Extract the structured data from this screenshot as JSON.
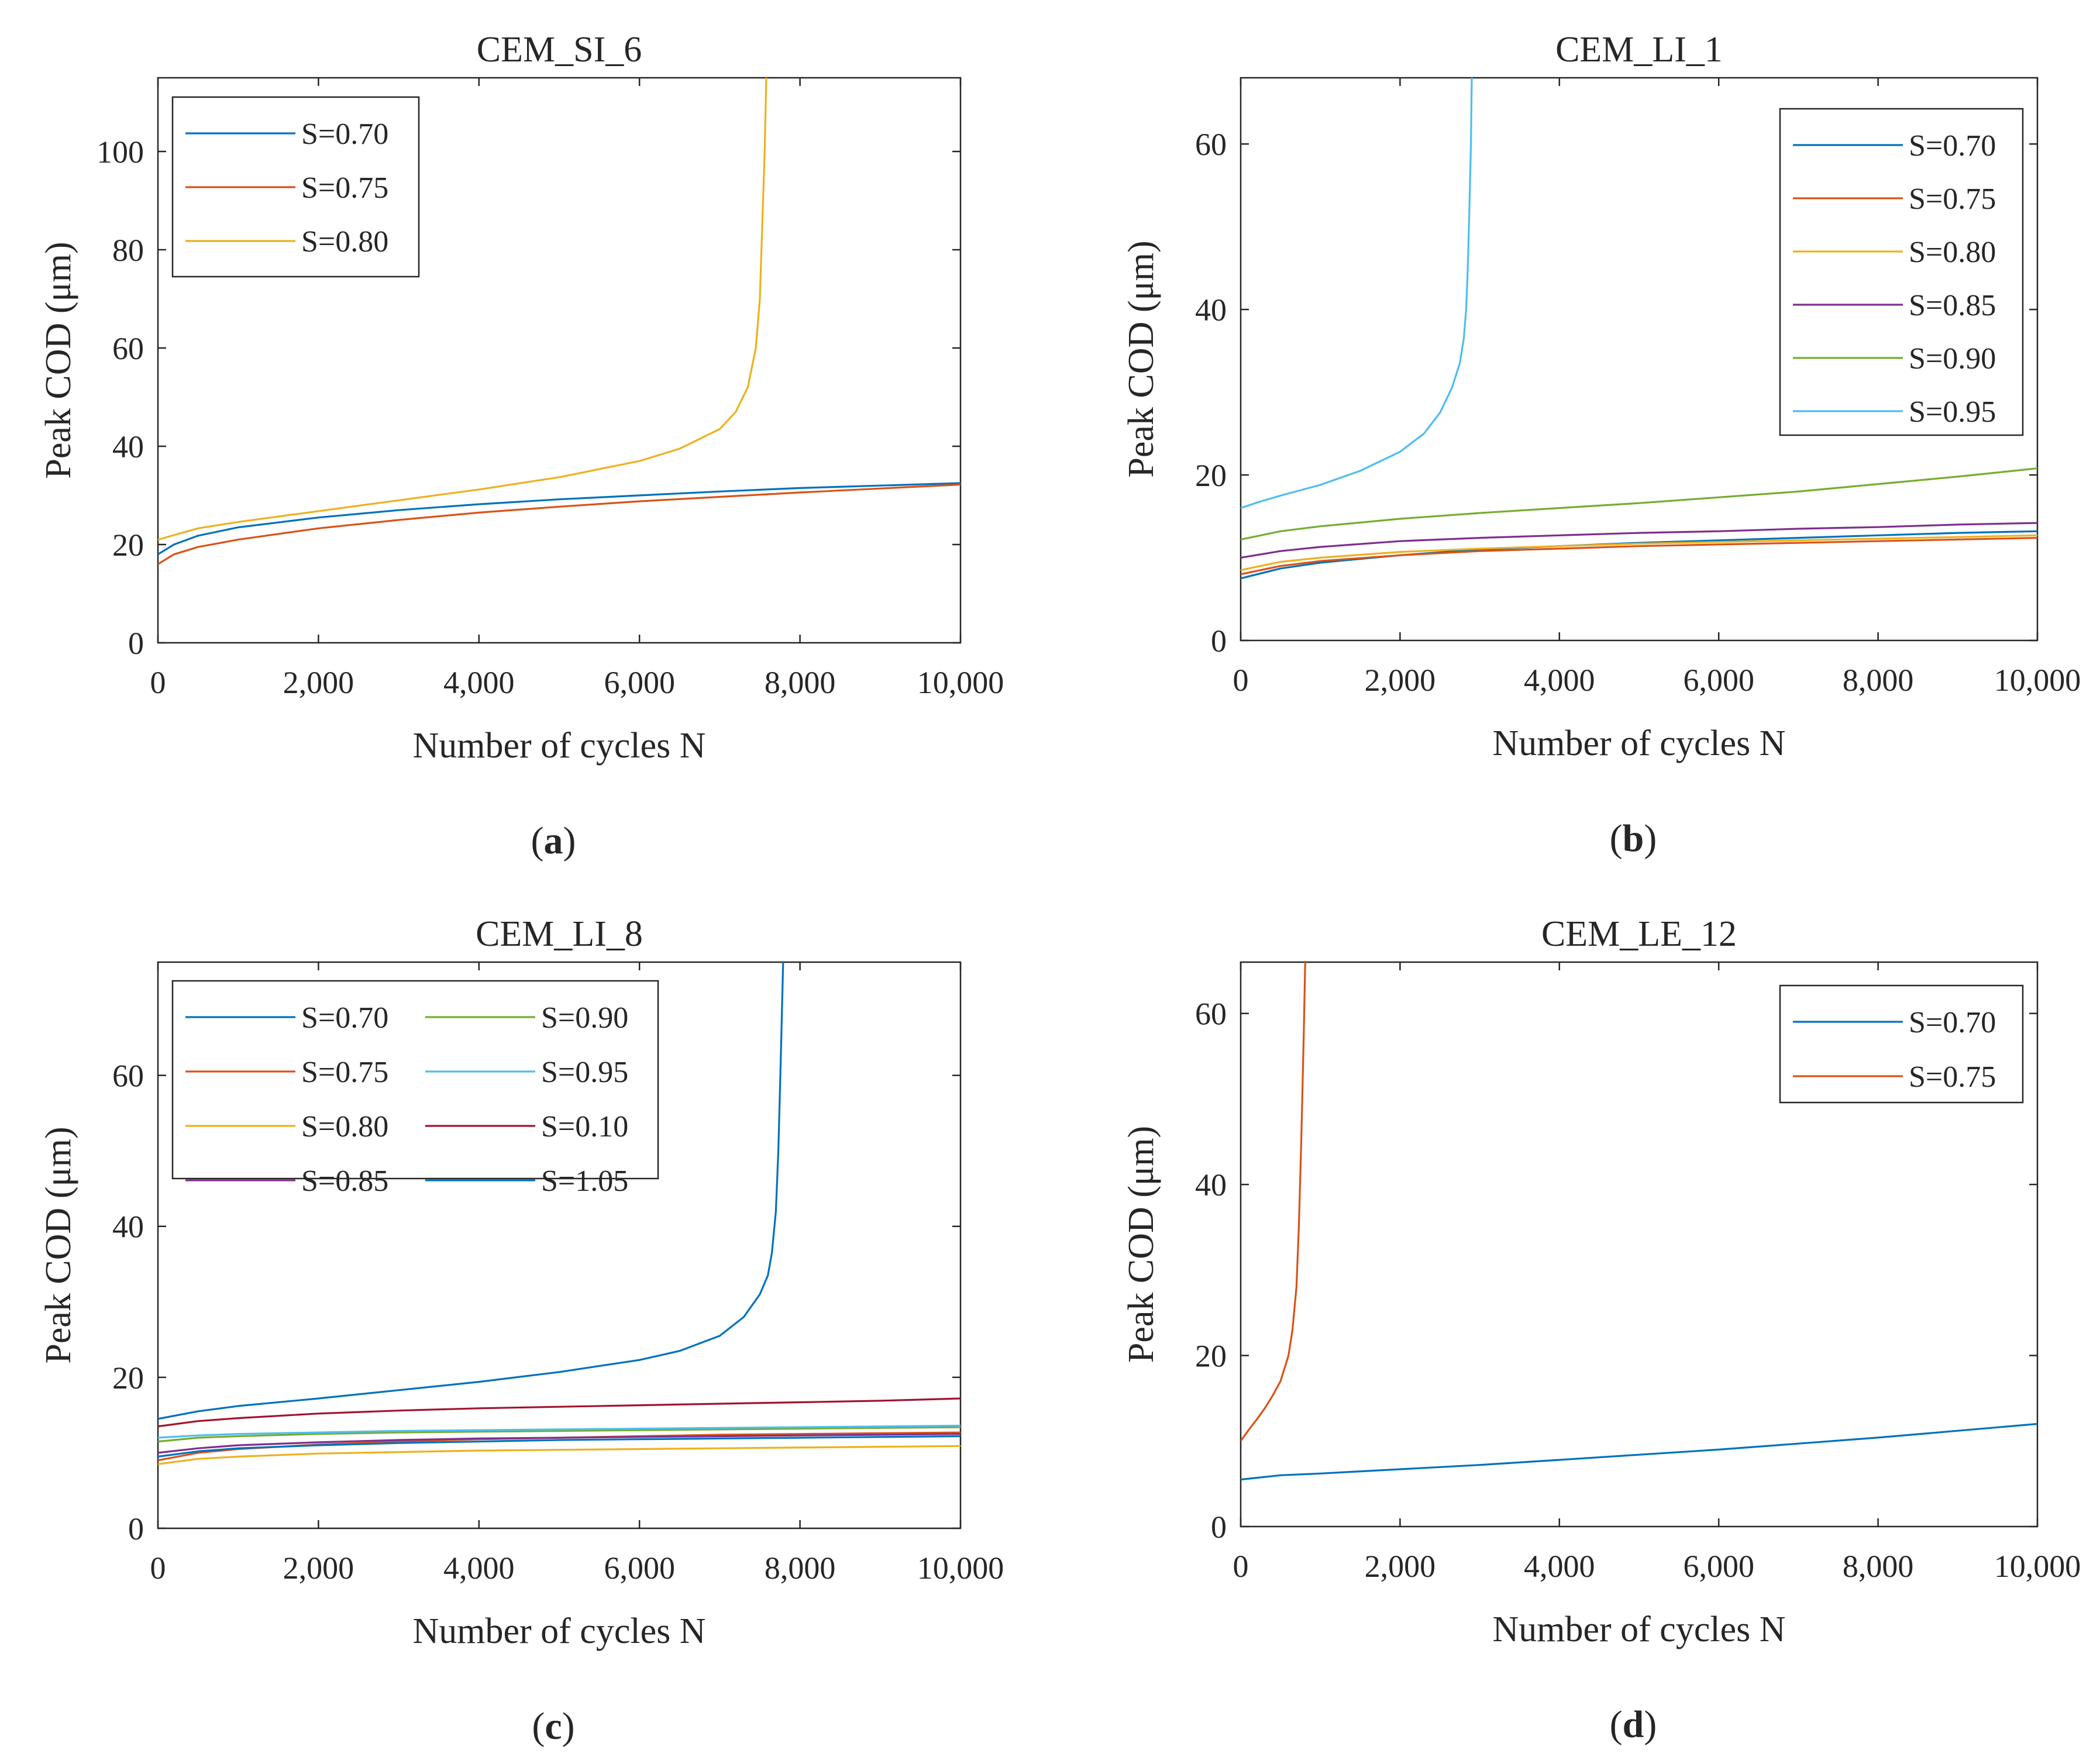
{
  "figure": {
    "colors": {
      "blue": "#0072BD",
      "orange": "#D95319",
      "yellow": "#EDB120",
      "purple": "#7E2F8E",
      "green": "#77AC30",
      "cyan": "#4DBEEE",
      "crimson": "#A2142F"
    }
  },
  "chart_data": [
    {
      "type": "line",
      "panel_label": "a",
      "title": "CEM_SI_6",
      "xlabel": "Number of cycles N",
      "ylabel": "Peak COD (μm)",
      "xlim": [
        0,
        10000
      ],
      "ylim": [
        0,
        115
      ],
      "xticks": [
        0,
        2000,
        4000,
        6000,
        8000,
        10000
      ],
      "xtick_labels": [
        "0",
        "2,000",
        "4,000",
        "6,000",
        "8,000",
        "10,000"
      ],
      "yticks": [
        0,
        20,
        40,
        60,
        80,
        100
      ],
      "ytick_labels": [
        "0",
        "20",
        "40",
        "60",
        "80",
        "100"
      ],
      "legend_position": "top-left",
      "legend_columns": 1,
      "series": [
        {
          "name": "S=0.70",
          "color": "#0072BD",
          "x": [
            0,
            200,
            500,
            1000,
            2000,
            3000,
            4000,
            5000,
            6000,
            7000,
            8000,
            9000,
            10000
          ],
          "y": [
            18,
            20,
            21.8,
            23.5,
            25.5,
            27,
            28.2,
            29.2,
            30,
            30.8,
            31.5,
            32,
            32.5
          ]
        },
        {
          "name": "S=0.75",
          "color": "#D95319",
          "x": [
            0,
            200,
            500,
            1000,
            2000,
            3000,
            4000,
            5000,
            6000,
            7000,
            8000,
            9000,
            10000
          ],
          "y": [
            16,
            18,
            19.5,
            21,
            23.3,
            25,
            26.5,
            27.7,
            28.8,
            29.7,
            30.6,
            31.4,
            32.2
          ]
        },
        {
          "name": "S=0.80",
          "color": "#EDB120",
          "x": [
            0,
            500,
            1000,
            2000,
            3000,
            4000,
            5000,
            6000,
            6500,
            7000,
            7200,
            7350,
            7450,
            7500,
            7530,
            7560,
            7580
          ],
          "y": [
            21,
            23.3,
            24.6,
            26.8,
            29,
            31.2,
            33.7,
            37,
            39.5,
            43.5,
            47,
            52,
            60,
            70,
            85,
            100,
            115
          ]
        }
      ]
    },
    {
      "type": "line",
      "panel_label": "b",
      "title": "CEM_LI_1",
      "xlabel": "Number of cycles N",
      "ylabel": "Peak COD (μm)",
      "xlim": [
        0,
        10000
      ],
      "ylim": [
        0,
        68
      ],
      "xticks": [
        0,
        2000,
        4000,
        6000,
        8000,
        10000
      ],
      "xtick_labels": [
        "0",
        "2,000",
        "4,000",
        "6,000",
        "8,000",
        "10,000"
      ],
      "yticks": [
        0,
        20,
        40,
        60
      ],
      "ytick_labels": [
        "0",
        "20",
        "40",
        "60"
      ],
      "legend_position": "top-right",
      "legend_columns": 1,
      "series": [
        {
          "name": "S=0.70",
          "color": "#0072BD",
          "x": [
            0,
            500,
            1000,
            2000,
            3000,
            4000,
            5000,
            6000,
            7000,
            8000,
            9000,
            10000
          ],
          "y": [
            7.5,
            8.7,
            9.4,
            10.3,
            11,
            11.4,
            11.8,
            12.1,
            12.4,
            12.7,
            13,
            13.2
          ]
        },
        {
          "name": "S=0.75",
          "color": "#D95319",
          "x": [
            0,
            500,
            1000,
            2000,
            3000,
            4000,
            5000,
            6000,
            7000,
            8000,
            9000,
            10000
          ],
          "y": [
            8,
            9,
            9.6,
            10.3,
            10.8,
            11.1,
            11.4,
            11.6,
            11.8,
            12,
            12.2,
            12.4
          ]
        },
        {
          "name": "S=0.80",
          "color": "#EDB120",
          "x": [
            0,
            500,
            1000,
            2000,
            3000,
            4000,
            5000,
            6000,
            7000,
            8000,
            9000,
            10000
          ],
          "y": [
            8.5,
            9.5,
            10,
            10.7,
            11.1,
            11.4,
            11.7,
            11.9,
            12.1,
            12.3,
            12.5,
            12.7
          ]
        },
        {
          "name": "S=0.85",
          "color": "#7E2F8E",
          "x": [
            0,
            500,
            1000,
            2000,
            3000,
            4000,
            5000,
            6000,
            7000,
            8000,
            9000,
            10000
          ],
          "y": [
            10,
            10.8,
            11.3,
            12,
            12.4,
            12.7,
            13,
            13.2,
            13.5,
            13.7,
            14,
            14.2
          ]
        },
        {
          "name": "S=0.90",
          "color": "#77AC30",
          "x": [
            0,
            500,
            1000,
            2000,
            3000,
            4000,
            5000,
            6000,
            7000,
            8000,
            9000,
            10000
          ],
          "y": [
            12.2,
            13.2,
            13.8,
            14.7,
            15.4,
            16,
            16.6,
            17.3,
            18,
            18.9,
            19.8,
            20.8
          ]
        },
        {
          "name": "S=0.95",
          "color": "#4DBEEE",
          "x": [
            0,
            250,
            500,
            1000,
            1500,
            2000,
            2300,
            2500,
            2650,
            2750,
            2800,
            2830,
            2850,
            2870,
            2890,
            2900
          ],
          "y": [
            16,
            16.8,
            17.5,
            18.8,
            20.5,
            22.8,
            25,
            27.5,
            30.5,
            33.5,
            36.5,
            40,
            45,
            52,
            60,
            68
          ]
        }
      ]
    },
    {
      "type": "line",
      "panel_label": "c",
      "title": "CEM_LI_8",
      "xlabel": "Number of cycles N",
      "ylabel": "Peak COD (μm)",
      "xlim": [
        0,
        10000
      ],
      "ylim": [
        0,
        75
      ],
      "xticks": [
        0,
        2000,
        4000,
        6000,
        8000,
        10000
      ],
      "xtick_labels": [
        "0",
        "2,000",
        "4,000",
        "6,000",
        "8,000",
        "10,000"
      ],
      "yticks": [
        0,
        20,
        40,
        60
      ],
      "ytick_labels": [
        "0",
        "20",
        "40",
        "60"
      ],
      "legend_position": "top-left",
      "legend_columns": 2,
      "series": [
        {
          "name": "S=0.70",
          "color": "#0072BD",
          "x": [
            0,
            500,
            1000,
            2000,
            3000,
            4000,
            5000,
            6000,
            6500,
            7000,
            7300,
            7500,
            7600,
            7650,
            7700,
            7730,
            7760,
            7790
          ],
          "y": [
            14.5,
            15.5,
            16.2,
            17.2,
            18.3,
            19.4,
            20.7,
            22.3,
            23.5,
            25.5,
            28,
            31,
            33.5,
            36.5,
            42,
            50,
            62,
            75
          ]
        },
        {
          "name": "S=0.75",
          "color": "#D95319",
          "x": [
            0,
            500,
            1000,
            2000,
            3000,
            4000,
            5000,
            6000,
            7000,
            8000,
            9000,
            10000
          ],
          "y": [
            9,
            10,
            10.5,
            11.1,
            11.5,
            11.8,
            12,
            12.2,
            12.4,
            12.5,
            12.6,
            12.7
          ]
        },
        {
          "name": "S=0.80",
          "color": "#EDB120",
          "x": [
            0,
            500,
            1000,
            2000,
            3000,
            4000,
            5000,
            6000,
            7000,
            8000,
            9000,
            10000
          ],
          "y": [
            8.5,
            9.2,
            9.5,
            9.9,
            10.1,
            10.3,
            10.4,
            10.5,
            10.6,
            10.7,
            10.8,
            10.9
          ]
        },
        {
          "name": "S=0.85",
          "color": "#7E2F8E",
          "x": [
            0,
            500,
            1000,
            2000,
            3000,
            4000,
            5000,
            6000,
            7000,
            8000,
            9000,
            10000
          ],
          "y": [
            10,
            10.6,
            11,
            11.4,
            11.7,
            11.9,
            12,
            12.1,
            12.2,
            12.3,
            12.4,
            12.5
          ]
        },
        {
          "name": "S=0.90",
          "color": "#77AC30",
          "x": [
            0,
            500,
            1000,
            2000,
            3000,
            4000,
            5000,
            6000,
            7000,
            8000,
            9000,
            10000
          ],
          "y": [
            11.5,
            12,
            12.2,
            12.5,
            12.7,
            12.8,
            12.9,
            13,
            13.1,
            13.2,
            13.3,
            13.4
          ]
        },
        {
          "name": "S=0.95",
          "color": "#4DBEEE",
          "x": [
            0,
            500,
            1000,
            2000,
            3000,
            4000,
            5000,
            6000,
            7000,
            8000,
            9000,
            10000
          ],
          "y": [
            12,
            12.3,
            12.5,
            12.7,
            12.9,
            13,
            13.1,
            13.2,
            13.3,
            13.4,
            13.5,
            13.6
          ]
        },
        {
          "name": "S=0.10",
          "color": "#A2142F",
          "x": [
            0,
            500,
            1000,
            2000,
            3000,
            4000,
            5000,
            6000,
            7000,
            8000,
            9000,
            10000
          ],
          "y": [
            13.5,
            14.2,
            14.6,
            15.2,
            15.6,
            15.9,
            16.1,
            16.3,
            16.5,
            16.7,
            16.9,
            17.2
          ]
        },
        {
          "name": "S=1.05",
          "color": "#0072BD",
          "x": [
            0,
            500,
            1000,
            2000,
            3000,
            4000,
            5000,
            6000,
            7000,
            8000,
            9000,
            10000
          ],
          "y": [
            9.5,
            10.2,
            10.6,
            11,
            11.3,
            11.5,
            11.7,
            11.8,
            11.9,
            12,
            12.1,
            12.2
          ]
        }
      ]
    },
    {
      "type": "line",
      "panel_label": "d",
      "title": "CEM_LE_12",
      "xlabel": "Number of cycles N",
      "ylabel": "Peak COD (μm)",
      "xlim": [
        0,
        10000
      ],
      "ylim": [
        0,
        66
      ],
      "xticks": [
        0,
        2000,
        4000,
        6000,
        8000,
        10000
      ],
      "xtick_labels": [
        "0",
        "2,000",
        "4,000",
        "6,000",
        "8,000",
        "10,000"
      ],
      "yticks": [
        0,
        20,
        40,
        60
      ],
      "ytick_labels": [
        "0",
        "20",
        "40",
        "60"
      ],
      "legend_position": "top-right",
      "legend_columns": 1,
      "series": [
        {
          "name": "S=0.70",
          "color": "#0072BD",
          "x": [
            0,
            500,
            1000,
            2000,
            3000,
            4000,
            5000,
            6000,
            7000,
            8000,
            9000,
            10000
          ],
          "y": [
            5.5,
            6,
            6.2,
            6.7,
            7.2,
            7.8,
            8.4,
            9,
            9.7,
            10.4,
            11.2,
            12
          ]
        },
        {
          "name": "S=0.75",
          "color": "#D95319",
          "x": [
            0,
            100,
            200,
            300,
            400,
            500,
            600,
            650,
            700,
            730,
            760,
            790,
            810
          ],
          "y": [
            10,
            11.3,
            12.5,
            13.8,
            15.3,
            17,
            20,
            23,
            28,
            35,
            45,
            57,
            66
          ]
        }
      ]
    }
  ]
}
